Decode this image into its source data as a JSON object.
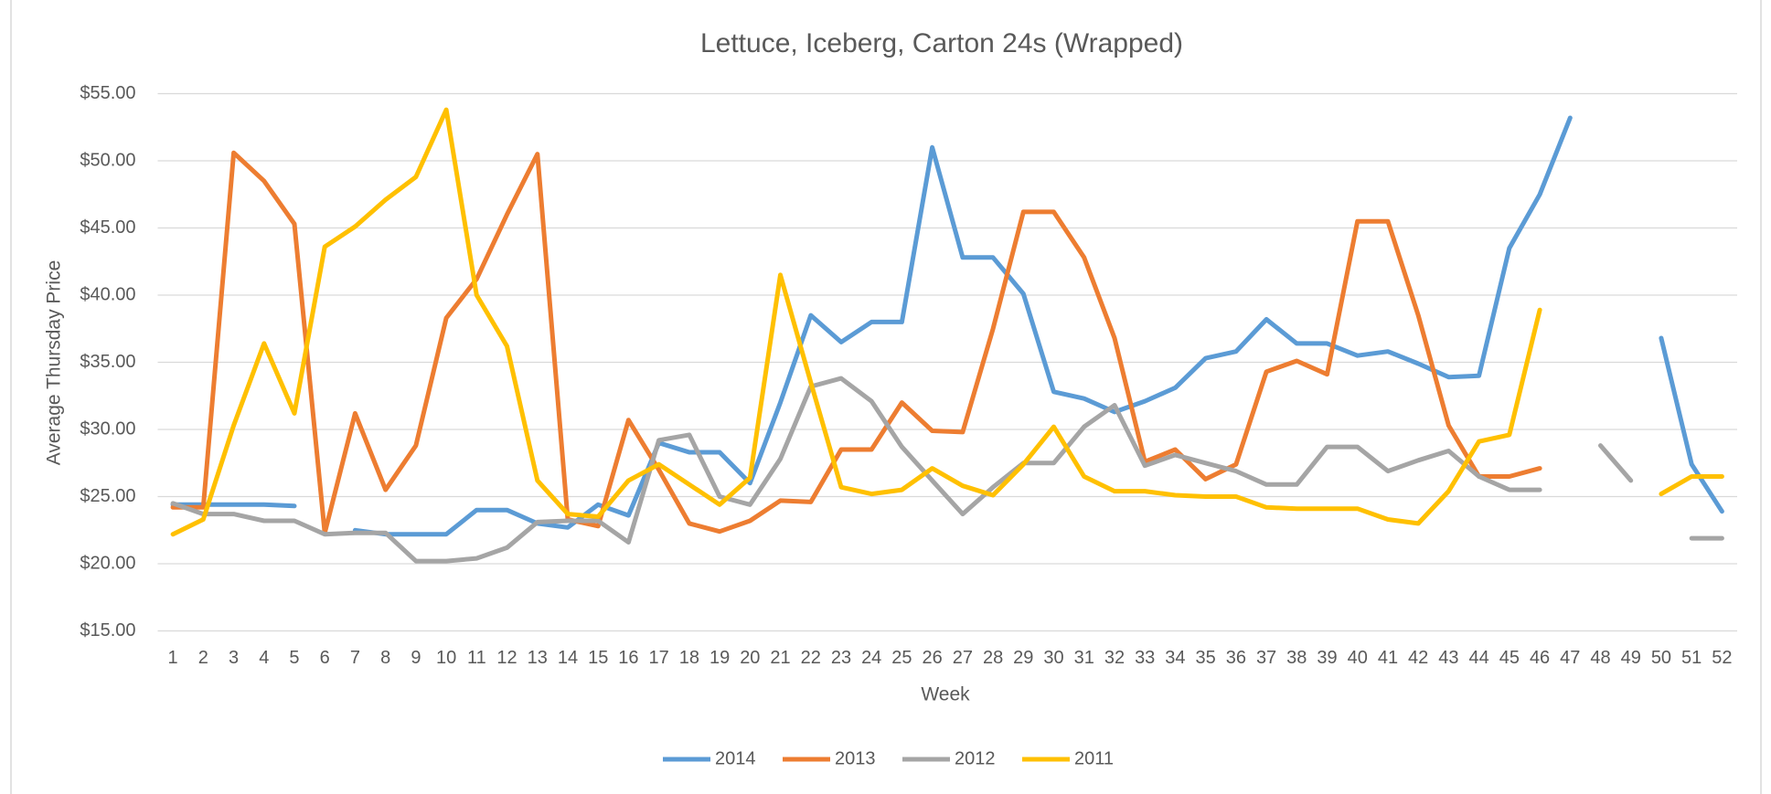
{
  "chart_data": {
    "type": "line",
    "title": "Lettuce, Iceberg, Carton 24s (Wrapped)",
    "x_label": "Week",
    "y_label": "Average Thursday Price",
    "categories": [
      "1",
      "2",
      "3",
      "4",
      "5",
      "6",
      "7",
      "8",
      "9",
      "10",
      "11",
      "12",
      "13",
      "14",
      "15",
      "16",
      "17",
      "18",
      "19",
      "20",
      "21",
      "22",
      "23",
      "24",
      "25",
      "26",
      "27",
      "28",
      "29",
      "30",
      "31",
      "32",
      "33",
      "34",
      "35",
      "36",
      "37",
      "38",
      "39",
      "40",
      "41",
      "42",
      "43",
      "44",
      "45",
      "46",
      "47",
      "48",
      "49",
      "50",
      "51",
      "52"
    ],
    "ylim": [
      15,
      55
    ],
    "yticks": [
      {
        "value": 15,
        "label": "$15.00"
      },
      {
        "value": 20,
        "label": "$20.00"
      },
      {
        "value": 25,
        "label": "$25.00"
      },
      {
        "value": 30,
        "label": "$30.00"
      },
      {
        "value": 35,
        "label": "$35.00"
      },
      {
        "value": 40,
        "label": "$40.00"
      },
      {
        "value": 45,
        "label": "$45.00"
      },
      {
        "value": 50,
        "label": "$50.00"
      },
      {
        "value": 55,
        "label": "$55.00"
      }
    ],
    "grid": true,
    "legend": "bottom",
    "series": [
      {
        "name": "2014",
        "color": "#5b9bd5",
        "values": [
          24.4,
          24.4,
          24.4,
          24.4,
          24.3,
          null,
          22.5,
          22.2,
          22.2,
          22.2,
          24.0,
          24.0,
          23.0,
          22.7,
          24.4,
          23.6,
          29.0,
          28.3,
          28.3,
          26.0,
          32.0,
          38.5,
          36.5,
          38.0,
          38.0,
          51.0,
          42.8,
          42.8,
          40.1,
          32.8,
          32.3,
          31.3,
          32.1,
          33.1,
          35.3,
          35.8,
          38.2,
          36.4,
          36.4,
          35.5,
          35.8,
          34.9,
          33.9,
          34.0,
          43.5,
          47.5,
          53.2,
          null,
          null,
          36.8,
          27.4,
          23.9
        ]
      },
      {
        "name": "2013",
        "color": "#ed7d31",
        "values": [
          24.2,
          24.2,
          50.6,
          48.5,
          45.3,
          22.3,
          31.2,
          25.5,
          28.8,
          38.3,
          41.2,
          46.0,
          50.5,
          23.3,
          22.8,
          30.7,
          27.0,
          23.0,
          22.4,
          23.2,
          24.7,
          24.6,
          28.5,
          28.5,
          32.0,
          29.9,
          29.8,
          37.5,
          46.2,
          46.2,
          42.8,
          36.8,
          27.6,
          28.5,
          26.3,
          27.4,
          34.3,
          35.1,
          34.1,
          45.5,
          45.5,
          38.5,
          30.3,
          26.5,
          26.5,
          27.1,
          null,
          null,
          null,
          null,
          null,
          null
        ]
      },
      {
        "name": "2012",
        "color": "#a5a5a5",
        "values": [
          24.5,
          23.7,
          23.7,
          23.2,
          23.2,
          22.2,
          22.3,
          22.3,
          20.2,
          20.2,
          20.4,
          21.2,
          23.1,
          23.2,
          23.2,
          21.6,
          29.2,
          29.6,
          25.0,
          24.4,
          27.8,
          33.2,
          33.8,
          32.1,
          28.7,
          26.2,
          23.7,
          25.7,
          27.5,
          27.5,
          30.2,
          31.8,
          27.3,
          28.1,
          27.5,
          26.9,
          25.9,
          25.9,
          28.7,
          28.7,
          26.9,
          27.7,
          28.4,
          26.5,
          25.5,
          25.5,
          null,
          28.8,
          26.2,
          null,
          21.9,
          21.9
        ]
      },
      {
        "name": "2011",
        "color": "#ffc000",
        "values": [
          22.2,
          23.3,
          30.3,
          36.4,
          31.2,
          43.6,
          45.1,
          47.1,
          48.8,
          53.8,
          40.0,
          36.2,
          26.2,
          23.7,
          23.5,
          26.2,
          27.4,
          25.9,
          24.4,
          26.4,
          41.5,
          33.5,
          25.7,
          25.2,
          25.5,
          27.1,
          25.8,
          25.1,
          27.4,
          30.2,
          26.5,
          25.4,
          25.4,
          25.1,
          25.0,
          25.0,
          24.2,
          24.1,
          24.1,
          24.1,
          23.3,
          23.0,
          25.4,
          29.1,
          29.6,
          38.9,
          null,
          null,
          null,
          25.2,
          26.5,
          26.5
        ]
      }
    ]
  }
}
